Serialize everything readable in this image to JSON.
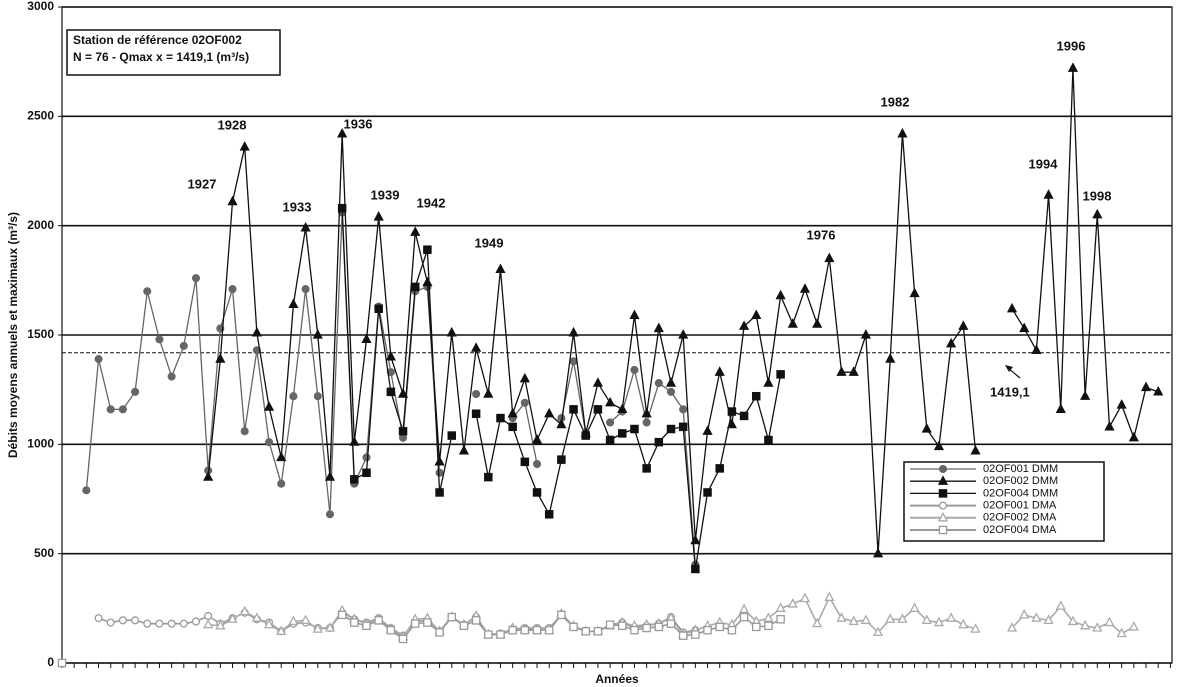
{
  "chart_data": {
    "type": "line",
    "y_label": "Débits moyens annuels et maximaux (m³/s)",
    "x_label": "Années",
    "ylim": [
      0,
      3000
    ],
    "yticks": [
      0,
      500,
      1000,
      1500,
      2000,
      2500,
      3000
    ],
    "grid": true,
    "legend": "lower right",
    "info_box": [
      "Station de référence 02OF002",
      "N = 76  - Qmax x = 1419,1 (m³/s)"
    ],
    "reference_line": {
      "value": 1419.1,
      "label": "1419,1"
    },
    "annotations": [
      "1927",
      "1928",
      "1933",
      "1936",
      "1939",
      "1942",
      "1949",
      "1976",
      "1982",
      "1994",
      "1996",
      "1998"
    ],
    "categories": [
      null,
      null,
      null,
      null,
      null,
      null,
      null,
      null,
      null,
      null,
      null,
      null,
      null,
      null,
      null,
      null,
      null,
      null,
      null,
      null,
      null,
      null,
      null,
      null,
      null,
      null,
      null,
      null,
      null,
      null,
      null,
      null,
      null,
      null,
      null,
      null,
      null,
      null,
      null,
      null,
      null,
      null,
      null,
      null,
      null,
      null,
      null,
      null,
      null,
      null,
      null,
      null,
      null,
      null,
      null,
      null,
      null,
      null,
      null,
      null,
      null,
      null,
      null,
      null,
      null,
      null,
      null,
      null,
      null,
      null,
      null,
      null,
      null,
      null,
      null,
      null,
      null,
      null,
      null,
      null,
      null,
      null,
      null,
      null,
      null,
      null,
      null,
      null,
      null,
      null,
      null,
      null
    ],
    "series": [
      {
        "name": "02OF001 DMM",
        "color": "#666666",
        "marker": "circle",
        "filled": true,
        "values": [
          null,
          null,
          790,
          1390,
          1160,
          1160,
          1240,
          1700,
          1480,
          1310,
          1450,
          1760,
          880,
          1530,
          1710,
          1060,
          1430,
          1010,
          820,
          1220,
          1710,
          1220,
          680,
          2060,
          820,
          940,
          1630,
          1330,
          1030,
          1700,
          1720,
          870,
          null,
          null,
          1230,
          null,
          null,
          1120,
          1190,
          910,
          null,
          1120,
          1380,
          1050,
          null,
          1100,
          1150,
          1340,
          1100,
          1280,
          1240,
          1160,
          450,
          null,
          null,
          null,
          null,
          null,
          null,
          null,
          null,
          null,
          null,
          null,
          null,
          null,
          null,
          null,
          null,
          null,
          null,
          null,
          null,
          null,
          null,
          null,
          null,
          null,
          null,
          null,
          null,
          null,
          null,
          null,
          null,
          null,
          null,
          null,
          null,
          null,
          null,
          null
        ]
      },
      {
        "name": "02OF002 DMM",
        "color": "#111111",
        "marker": "triangle",
        "filled": true,
        "values": [
          null,
          null,
          null,
          null,
          null,
          null,
          null,
          null,
          null,
          null,
          null,
          null,
          850,
          1390,
          2110,
          2360,
          1510,
          1170,
          940,
          1640,
          1990,
          1500,
          850,
          2420,
          1010,
          1480,
          2040,
          1400,
          1230,
          1970,
          1740,
          920,
          1510,
          970,
          1440,
          1230,
          1800,
          1140,
          1300,
          1020,
          1140,
          1090,
          1510,
          1050,
          1280,
          1190,
          1160,
          1590,
          1140,
          1530,
          1280,
          1500,
          560,
          1060,
          1330,
          1090,
          1540,
          1590,
          1280,
          1680,
          1550,
          1710,
          1550,
          1850,
          1330,
          1330,
          1500,
          500,
          1390,
          2420,
          1690,
          1070,
          990,
          1460,
          1540,
          970,
          null,
          null,
          1620,
          1530,
          1430,
          2140,
          1160,
          2720,
          1220,
          2050,
          1080,
          1180,
          1030,
          1260,
          1240,
          null
        ]
      },
      {
        "name": "02OF004 DMM",
        "color": "#111111",
        "marker": "square",
        "filled": true,
        "values": [
          null,
          null,
          null,
          null,
          null,
          null,
          null,
          null,
          null,
          null,
          null,
          null,
          null,
          null,
          null,
          null,
          null,
          null,
          null,
          null,
          null,
          null,
          null,
          2080,
          840,
          870,
          1620,
          1240,
          1060,
          1720,
          1890,
          780,
          1040,
          null,
          1140,
          850,
          1120,
          1080,
          920,
          780,
          680,
          930,
          1160,
          1040,
          1160,
          1020,
          1050,
          1070,
          890,
          1010,
          1070,
          1080,
          430,
          780,
          890,
          1150,
          1130,
          1220,
          1020,
          1320,
          null,
          null,
          null,
          null,
          null,
          null,
          null,
          null,
          null,
          null,
          null,
          null,
          null,
          null,
          null,
          null,
          null,
          null,
          null,
          null,
          null,
          null,
          null,
          null,
          null,
          null,
          null,
          null,
          null,
          null,
          null,
          null
        ]
      },
      {
        "name": "02OF001 DMA",
        "color": "#9a9a9a",
        "marker": "circle",
        "filled": false,
        "values": [
          null,
          null,
          null,
          205,
          185,
          195,
          195,
          180,
          180,
          180,
          180,
          190,
          215,
          180,
          205,
          230,
          200,
          185,
          145,
          180,
          185,
          160,
          160,
          230,
          200,
          185,
          205,
          160,
          125,
          190,
          195,
          145,
          210,
          175,
          210,
          130,
          135,
          155,
          160,
          160,
          160,
          220,
          165,
          145,
          145,
          175,
          185,
          160,
          170,
          180,
          210,
          140,
          150,
          null,
          null,
          null,
          null,
          null,
          null,
          null,
          null,
          null,
          null,
          null,
          null,
          null,
          null,
          null,
          null,
          null,
          null,
          null,
          null,
          null,
          null,
          null,
          null,
          null,
          null,
          null,
          null,
          null,
          null,
          null,
          null,
          null,
          null,
          null,
          null,
          null,
          null,
          null
        ]
      },
      {
        "name": "02OF002 DMA",
        "color": "#aaaaaa",
        "marker": "triangle",
        "filled": false,
        "values": [
          null,
          null,
          null,
          null,
          null,
          null,
          null,
          null,
          null,
          null,
          null,
          null,
          175,
          170,
          200,
          235,
          205,
          175,
          145,
          190,
          195,
          155,
          160,
          240,
          200,
          180,
          200,
          155,
          120,
          200,
          205,
          145,
          210,
          175,
          215,
          130,
          130,
          160,
          155,
          150,
          150,
          225,
          170,
          145,
          145,
          170,
          185,
          170,
          175,
          180,
          205,
          130,
          150,
          170,
          185,
          175,
          245,
          190,
          205,
          250,
          270,
          295,
          180,
          300,
          205,
          190,
          195,
          140,
          200,
          200,
          250,
          195,
          185,
          205,
          175,
          155,
          null,
          null,
          160,
          220,
          205,
          195,
          260,
          190,
          170,
          160,
          185,
          135,
          165,
          null,
          null,
          null
        ]
      },
      {
        "name": "02OF004 DMA",
        "color": "#9a9a9a",
        "marker": "square",
        "filled": false,
        "values": [
          0,
          null,
          null,
          null,
          null,
          null,
          null,
          null,
          null,
          null,
          null,
          null,
          null,
          null,
          null,
          null,
          null,
          null,
          null,
          null,
          null,
          null,
          null,
          220,
          185,
          170,
          195,
          150,
          110,
          180,
          185,
          140,
          210,
          170,
          195,
          130,
          130,
          150,
          150,
          150,
          150,
          220,
          165,
          145,
          145,
          175,
          170,
          150,
          160,
          165,
          180,
          125,
          130,
          150,
          165,
          150,
          210,
          165,
          170,
          200,
          null,
          null,
          null,
          null,
          null,
          null,
          null,
          null,
          null,
          null,
          null,
          null,
          null,
          null,
          null,
          null,
          null,
          null,
          null,
          null,
          null,
          null,
          null,
          null,
          null,
          null,
          null,
          null,
          null,
          null,
          null,
          null
        ]
      }
    ]
  }
}
